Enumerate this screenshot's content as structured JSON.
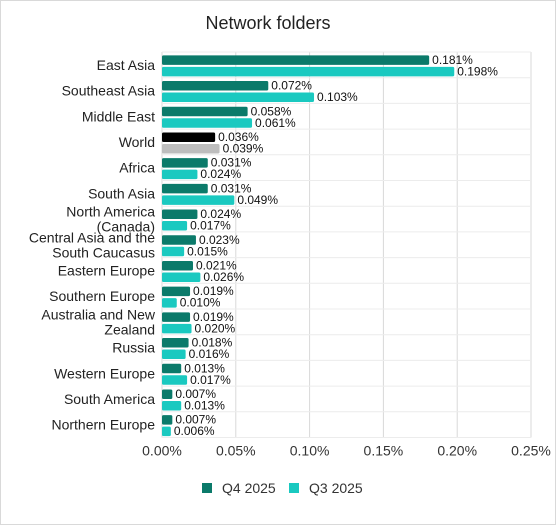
{
  "chart_data": {
    "type": "bar",
    "orientation": "horizontal",
    "title": "Network folders",
    "categories": [
      "East Asia",
      "Southeast Asia",
      "Middle East",
      "World",
      "Africa",
      "South Asia",
      "North America (Canada)",
      "Central Asia and the South Caucasus",
      "Eastern Europe",
      "Southern Europe",
      "Australia and New Zealand",
      "Russia",
      "Western Europe",
      "South America",
      "Northern Europe"
    ],
    "category_lines": [
      [
        "East Asia"
      ],
      [
        "Southeast Asia"
      ],
      [
        "Middle East"
      ],
      [
        "World"
      ],
      [
        "Africa"
      ],
      [
        "South Asia"
      ],
      [
        "North America",
        "(Canada)"
      ],
      [
        "Central Asia and the",
        "South Caucasus"
      ],
      [
        "Eastern Europe"
      ],
      [
        "Southern Europe"
      ],
      [
        "Australia and New",
        "Zealand"
      ],
      [
        "Russia"
      ],
      [
        "Western Europe"
      ],
      [
        "South America"
      ],
      [
        "Northern Europe"
      ]
    ],
    "series": [
      {
        "name": "Q4 2025",
        "color": "#0b7a6a",
        "values": [
          0.181,
          0.072,
          0.058,
          0.036,
          0.031,
          0.031,
          0.024,
          0.023,
          0.021,
          0.019,
          0.019,
          0.018,
          0.013,
          0.007,
          0.007
        ],
        "labels": [
          "0.181%",
          "0.072%",
          "0.058%",
          "0.036%",
          "0.031%",
          "0.031%",
          "0.024%",
          "0.023%",
          "0.021%",
          "0.019%",
          "0.019%",
          "0.018%",
          "0.013%",
          "0.007%",
          "0.007%"
        ]
      },
      {
        "name": "Q3 2025",
        "color": "#1ac9c0",
        "values": [
          0.198,
          0.103,
          0.061,
          0.039,
          0.024,
          0.049,
          0.017,
          0.015,
          0.026,
          0.01,
          0.02,
          0.016,
          0.017,
          0.013,
          0.006
        ],
        "labels": [
          "0.198%",
          "0.103%",
          "0.061%",
          "0.039%",
          "0.024%",
          "0.049%",
          "0.017%",
          "0.015%",
          "0.026%",
          "0.010%",
          "0.020%",
          "0.016%",
          "0.017%",
          "0.013%",
          "0.006%"
        ]
      }
    ],
    "highlight": {
      "category": "World",
      "colors": [
        "#000000",
        "#bdbdbd"
      ]
    },
    "xlim": [
      0,
      0.25
    ],
    "xticks": [
      0,
      0.05,
      0.1,
      0.15,
      0.2,
      0.25
    ],
    "xtick_labels": [
      "0.00%",
      "0.05%",
      "0.10%",
      "0.15%",
      "0.20%",
      "0.25%"
    ],
    "xlabel": "",
    "ylabel": "",
    "grid": "vertical",
    "legend_position": "bottom"
  }
}
